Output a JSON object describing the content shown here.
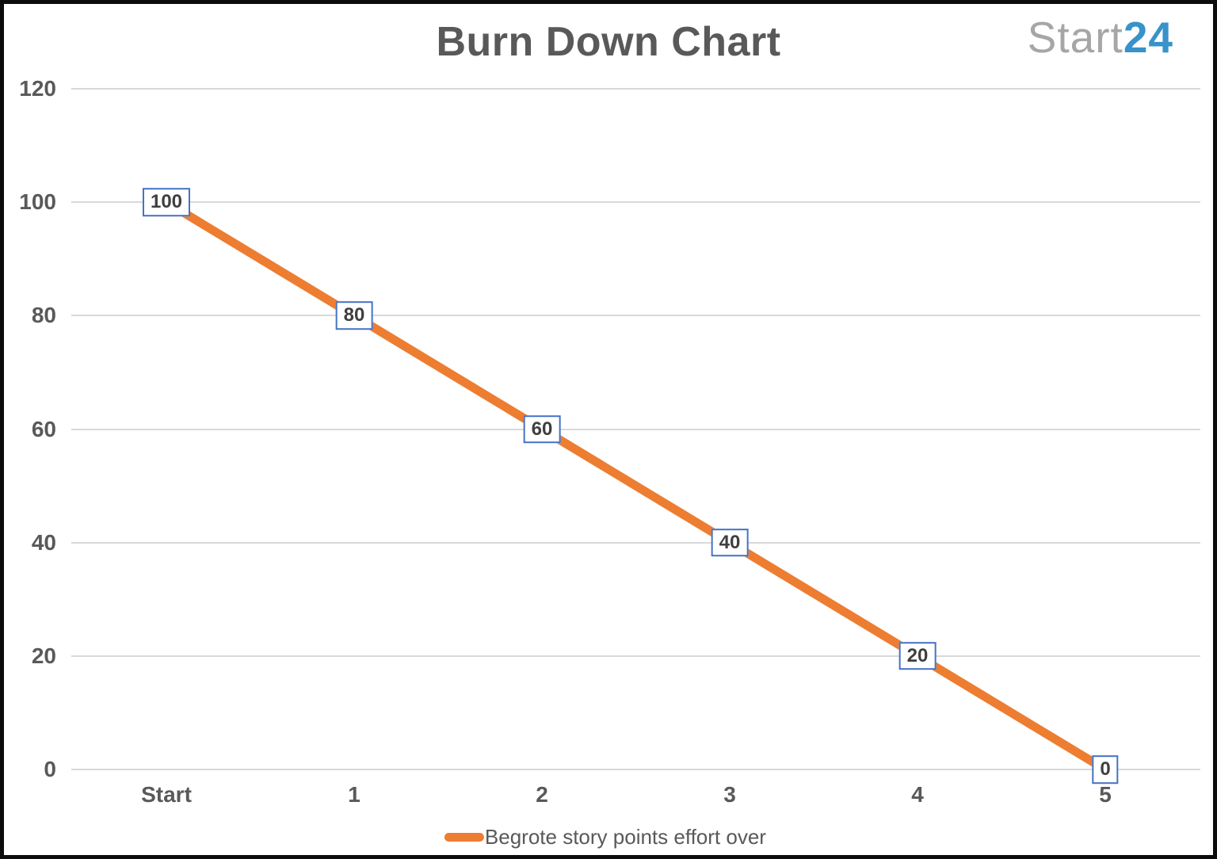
{
  "header": {
    "logo": {
      "part1": "Start",
      "part2": "24",
      "part1_color": "#A6A6A6",
      "part2_color": "#3793C9"
    }
  },
  "chart_data": {
    "type": "line",
    "title": "Burn Down Chart",
    "categories": [
      "Start",
      "1",
      "2",
      "3",
      "4",
      "5"
    ],
    "series": [
      {
        "name": "Begrote story points effort over",
        "color": "#ED7D31",
        "values": [
          100,
          80,
          60,
          40,
          20,
          0
        ]
      }
    ],
    "ylim": [
      0,
      120
    ],
    "yticks": [
      0,
      20,
      40,
      60,
      80,
      100,
      120
    ],
    "grid": true,
    "legend_position": "bottom",
    "data_labels_shown": true
  },
  "colors": {
    "axis_text": "#595959",
    "gridline": "#D9D9D9",
    "data_label_border": "#4472C4",
    "data_label_text": "#3F3F3F",
    "frame": "#0C0C0C"
  }
}
